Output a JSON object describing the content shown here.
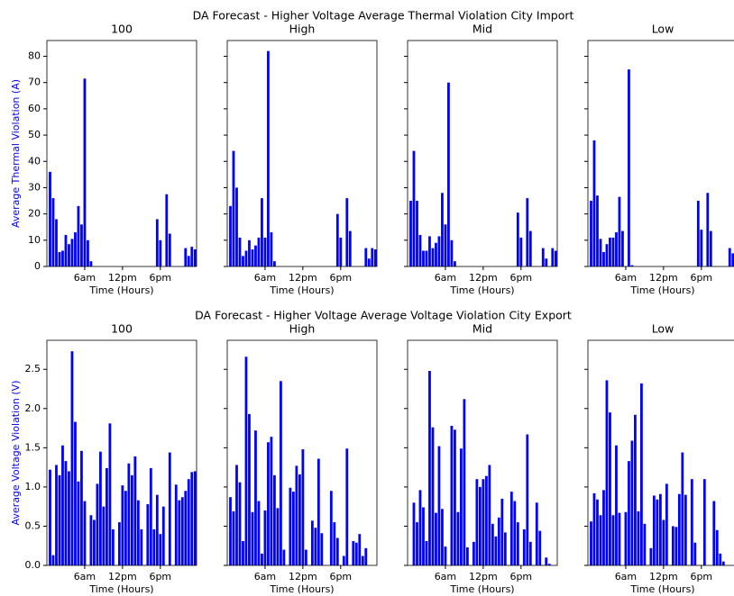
{
  "chart_data": [
    {
      "type": "bar",
      "title": "DA Forecast - Higher Voltage Average Thermal Violation City Import",
      "xlabel": "Time (Hours)",
      "ylabel": "Average Thermal Violation (A)",
      "color": "#0000ff",
      "x": [
        1,
        2,
        3,
        4,
        5,
        6,
        7,
        8,
        9,
        10,
        11,
        12,
        13,
        14,
        15,
        16,
        17,
        18,
        19,
        20,
        21,
        22,
        23,
        24,
        25,
        26,
        27,
        28,
        29,
        30,
        31,
        32,
        33,
        34,
        35,
        36,
        37,
        38,
        39,
        40,
        41,
        42,
        43,
        44,
        45,
        46,
        47
      ],
      "xlim": [
        0,
        47.5
      ],
      "xticks": [
        {
          "value": 12,
          "label": "6am"
        },
        {
          "value": 24,
          "label": "12pm"
        },
        {
          "value": 36,
          "label": "6pm"
        }
      ],
      "ylim": [
        0,
        86
      ],
      "yticks": [
        0,
        10,
        20,
        30,
        40,
        50,
        60,
        70,
        80
      ],
      "panels": [
        {
          "title": "100",
          "values": [
            36,
            26,
            18,
            5.5,
            6,
            12,
            8.5,
            10.5,
            13,
            23,
            16,
            71.5,
            10,
            2,
            0,
            0,
            0,
            0,
            0,
            0,
            0,
            0,
            0,
            0,
            0,
            0,
            0,
            0,
            0,
            0,
            0,
            0,
            0,
            0,
            18,
            10,
            0,
            27.5,
            12.5,
            0,
            0,
            0,
            0,
            7,
            4,
            7.5,
            6.5
          ]
        },
        {
          "title": "High",
          "values": [
            23,
            44,
            30,
            11,
            4,
            6,
            10,
            6.5,
            8,
            11,
            26,
            11,
            82,
            13,
            2,
            0,
            0,
            0,
            0,
            0,
            0,
            0,
            0,
            0,
            0,
            0,
            0,
            0,
            0,
            0,
            0,
            0,
            0,
            0,
            20,
            11,
            0,
            26,
            13.5,
            0,
            0,
            0,
            0,
            7,
            3,
            7,
            6.5
          ]
        },
        {
          "title": "Mid",
          "values": [
            25,
            44,
            25,
            12,
            6,
            6,
            11.5,
            7,
            9,
            11.5,
            28,
            16,
            70,
            10,
            2,
            0,
            0,
            0,
            0,
            0,
            0,
            0,
            0,
            0,
            0,
            0,
            0,
            0,
            0,
            0,
            0,
            0,
            0,
            0,
            20.5,
            11,
            0,
            26,
            13.5,
            0,
            0,
            0,
            7,
            3,
            0,
            7,
            6
          ]
        },
        {
          "title": "Low",
          "values": [
            25,
            48,
            27,
            10.5,
            5.5,
            8.5,
            11,
            11,
            13,
            26.5,
            13.5,
            0,
            75,
            0.5,
            0,
            0,
            0,
            0,
            0,
            0,
            0,
            0,
            0,
            0,
            0,
            0,
            0,
            0,
            0,
            0,
            0,
            0,
            0,
            0,
            25,
            14,
            0,
            28,
            13.5,
            0,
            0,
            0,
            0,
            0,
            7,
            5,
            0
          ]
        }
      ]
    },
    {
      "type": "bar",
      "title": "DA Forecast - Higher Voltage Average Voltage Violation City Export",
      "xlabel": "Time (Hours)",
      "ylabel": "Average Voltage Violation (V)",
      "color": "#0000ff",
      "x": [
        1,
        2,
        3,
        4,
        5,
        6,
        7,
        8,
        9,
        10,
        11,
        12,
        13,
        14,
        15,
        16,
        17,
        18,
        19,
        20,
        21,
        22,
        23,
        24,
        25,
        26,
        27,
        28,
        29,
        30,
        31,
        32,
        33,
        34,
        35,
        36,
        37,
        38,
        39,
        40,
        41,
        42,
        43,
        44,
        45,
        46,
        47
      ],
      "xlim": [
        0,
        47.5
      ],
      "xticks": [
        {
          "value": 12,
          "label": "6am"
        },
        {
          "value": 24,
          "label": "12pm"
        },
        {
          "value": 36,
          "label": "6pm"
        }
      ],
      "ylim": [
        0,
        2.87
      ],
      "yticks": [
        {
          "value": 0,
          "label": "0.0"
        },
        0.5,
        {
          "value": 1,
          "label": "1.0"
        },
        1.5,
        {
          "value": 2,
          "label": "2.0"
        },
        2.5
      ],
      "panels": [
        {
          "title": "100",
          "values": [
            1.22,
            0.13,
            1.28,
            1.15,
            1.53,
            1.33,
            1.2,
            2.73,
            1.83,
            1.07,
            1.46,
            0.82,
            0,
            0.64,
            0.58,
            1.04,
            1.45,
            0.75,
            1.24,
            1.81,
            0.46,
            0,
            0.55,
            1.02,
            0.95,
            1.3,
            1.15,
            1.39,
            0.83,
            0.46,
            0,
            0.78,
            1.24,
            0.46,
            0.9,
            0.4,
            0.75,
            0,
            1.44,
            0,
            1.03,
            0.83,
            0.87,
            0.95,
            1.1,
            1.19,
            1.2
          ]
        },
        {
          "title": "High",
          "values": [
            0.87,
            0.69,
            1.28,
            1.06,
            0.31,
            2.66,
            1.93,
            0.68,
            1.72,
            0.82,
            0.15,
            0.7,
            1.57,
            1.64,
            1.15,
            0.73,
            2.35,
            0.2,
            0,
            0.99,
            0.94,
            1.27,
            1.16,
            1.48,
            0.2,
            0,
            0.57,
            0.48,
            1.36,
            0.41,
            0,
            0,
            0.95,
            0.55,
            0.35,
            0,
            0.12,
            1.49,
            0,
            0.31,
            0.29,
            0.4,
            0.12,
            0.22,
            0,
            0,
            0
          ]
        },
        {
          "title": "Mid",
          "values": [
            0,
            0.8,
            0.55,
            0.96,
            0.74,
            0.31,
            2.48,
            1.76,
            0.67,
            1.52,
            0.72,
            0.24,
            0,
            1.78,
            1.73,
            0.68,
            1.49,
            2.12,
            0.23,
            0,
            0.3,
            1.1,
            1,
            1.1,
            1.14,
            1.28,
            0.53,
            0.37,
            0.61,
            0.85,
            0.42,
            0,
            0.94,
            0.82,
            0.55,
            0,
            0.46,
            1.67,
            0.3,
            0,
            0.8,
            0.44,
            0,
            0.1,
            0.02,
            0,
            0
          ]
        },
        {
          "title": "Low",
          "values": [
            0.56,
            0.92,
            0.84,
            0.64,
            0.96,
            2.36,
            1.95,
            0.64,
            1.53,
            0.67,
            0,
            0.68,
            1.33,
            1.59,
            1.92,
            0.69,
            2.32,
            0.53,
            0,
            0.22,
            0.89,
            0.84,
            0.91,
            0.58,
            1.04,
            0,
            0.5,
            0.49,
            0.91,
            1.44,
            0.9,
            0,
            1.1,
            0.29,
            0,
            0,
            1.1,
            0,
            0,
            0.82,
            0.45,
            0.15,
            0.05,
            0,
            0,
            0,
            0
          ]
        }
      ]
    }
  ]
}
